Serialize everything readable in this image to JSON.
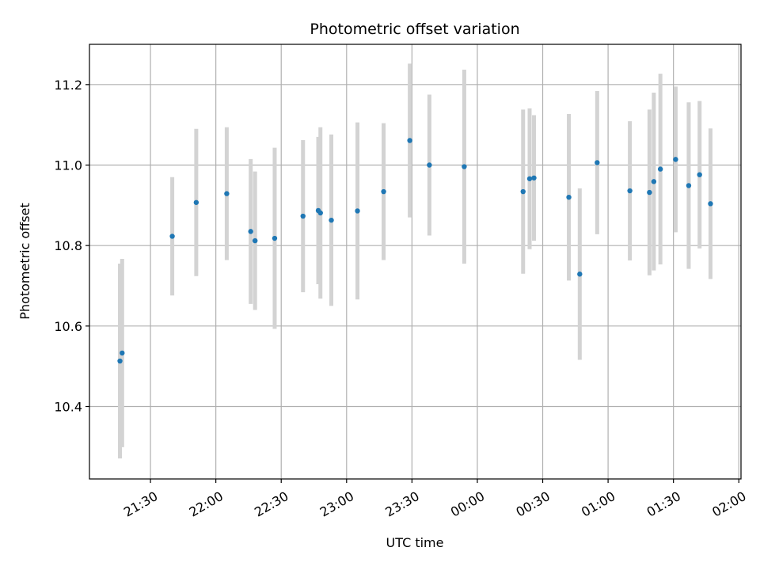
{
  "chart_data": {
    "type": "scatter",
    "title": "Photometric offset variation",
    "xlabel": "UTC time",
    "ylabel": "Photometric offset",
    "x_ticks": [
      "21:30",
      "22:00",
      "22:30",
      "23:00",
      "23:30",
      "00:00",
      "00:30",
      "01:00",
      "01:30",
      "02:00"
    ],
    "x_tick_times": [
      "21:30",
      "22:00",
      "22:30",
      "23:00",
      "23:30",
      "00:00",
      "00:30",
      "01:00",
      "01:30",
      "02:00"
    ],
    "x_range": [
      "21:02",
      "02:01"
    ],
    "y_ticks": [
      10.4,
      10.6,
      10.8,
      11.0,
      11.2
    ],
    "y_range": [
      10.22,
      11.3
    ],
    "grid": true,
    "marker_color": "#1f77b4",
    "errorbar_color": "#d3d3d3",
    "points": [
      {
        "time": "21:16",
        "y": 10.513,
        "err": 0.242
      },
      {
        "time": "21:17",
        "y": 10.533,
        "err": 0.234
      },
      {
        "time": "21:40",
        "y": 10.823,
        "err": 0.147
      },
      {
        "time": "21:51",
        "y": 10.907,
        "err": 0.183
      },
      {
        "time": "22:05",
        "y": 10.929,
        "err": 0.165
      },
      {
        "time": "22:16",
        "y": 10.835,
        "err": 0.18
      },
      {
        "time": "22:18",
        "y": 10.812,
        "err": 0.172
      },
      {
        "time": "22:27",
        "y": 10.818,
        "err": 0.225
      },
      {
        "time": "22:40",
        "y": 10.873,
        "err": 0.189
      },
      {
        "time": "22:47",
        "y": 10.887,
        "err": 0.183
      },
      {
        "time": "22:48",
        "y": 10.881,
        "err": 0.213
      },
      {
        "time": "22:53",
        "y": 10.863,
        "err": 0.213
      },
      {
        "time": "23:05",
        "y": 10.886,
        "err": 0.22
      },
      {
        "time": "23:17",
        "y": 10.934,
        "err": 0.17
      },
      {
        "time": "23:29",
        "y": 11.061,
        "err": 0.191
      },
      {
        "time": "23:38",
        "y": 11.0,
        "err": 0.175
      },
      {
        "time": "23:54",
        "y": 10.996,
        "err": 0.241
      },
      {
        "time": "00:21",
        "y": 10.934,
        "err": 0.204
      },
      {
        "time": "00:24",
        "y": 10.966,
        "err": 0.175
      },
      {
        "time": "00:26",
        "y": 10.968,
        "err": 0.156
      },
      {
        "time": "00:42",
        "y": 10.92,
        "err": 0.207
      },
      {
        "time": "00:47",
        "y": 10.729,
        "err": 0.213
      },
      {
        "time": "00:55",
        "y": 11.006,
        "err": 0.178
      },
      {
        "time": "01:10",
        "y": 10.936,
        "err": 0.173
      },
      {
        "time": "01:19",
        "y": 10.932,
        "err": 0.206
      },
      {
        "time": "01:21",
        "y": 10.959,
        "err": 0.221
      },
      {
        "time": "01:24",
        "y": 10.99,
        "err": 0.237
      },
      {
        "time": "01:31",
        "y": 11.014,
        "err": 0.181
      },
      {
        "time": "01:37",
        "y": 10.949,
        "err": 0.207
      },
      {
        "time": "01:42",
        "y": 10.976,
        "err": 0.183
      },
      {
        "time": "01:47",
        "y": 10.904,
        "err": 0.187
      }
    ]
  }
}
